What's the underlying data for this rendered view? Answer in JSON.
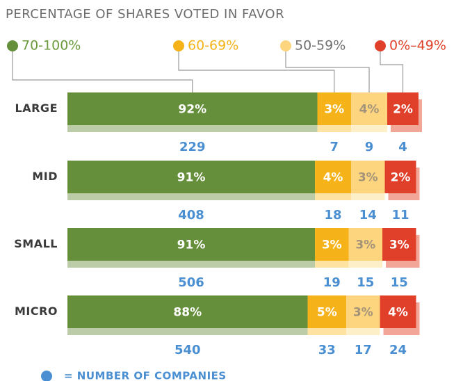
{
  "chart_data": {
    "type": "stacked_bar",
    "orientation": "horizontal",
    "title": "PERCENTAGE OF SHARES VOTED IN FAVOR",
    "categories": [
      "LARGE",
      "MID",
      "SMALL",
      "MICRO"
    ],
    "xlim": [
      0,
      101
    ],
    "series": [
      {
        "name": "70-100%",
        "color": "#658f3b",
        "shadow": "#bccca8",
        "label_color": "#ffffff",
        "legend_color": "#6a9a3b",
        "values": [
          92,
          91,
          91,
          88
        ],
        "value_labels": [
          "92%",
          "91%",
          "91%",
          "88%"
        ],
        "counts": [
          229,
          408,
          506,
          540
        ]
      },
      {
        "name": "60-69%",
        "color": "#f5b319",
        "shadow": "#fde2a2",
        "label_color": "#ffffff",
        "legend_color": "#f5b319",
        "values": [
          3,
          4,
          3,
          5
        ],
        "value_labels": [
          "3%",
          "4%",
          "3%",
          "5%"
        ],
        "counts": [
          7,
          18,
          19,
          33
        ]
      },
      {
        "name": "50-59%",
        "color": "#fdd57f",
        "shadow": "#fdf0c9",
        "label_color": "#a3927a",
        "legend_color": "#707070",
        "values": [
          4,
          3,
          3,
          3
        ],
        "value_labels": [
          "4%",
          "3%",
          "3%",
          "3%"
        ],
        "counts": [
          9,
          14,
          15,
          17
        ]
      },
      {
        "name": "0%–49%",
        "color": "#e0402a",
        "shadow": "#f2a697",
        "label_color": "#ffffff",
        "legend_color": "#e0402a",
        "values": [
          2,
          2,
          3,
          4
        ],
        "value_labels": [
          "2%",
          "2%",
          "3%",
          "4%"
        ],
        "counts": [
          4,
          11,
          15,
          24
        ]
      }
    ],
    "footnote": "= NUMBER OF COMPANIES",
    "footnote_color": "#4a8fd2"
  }
}
